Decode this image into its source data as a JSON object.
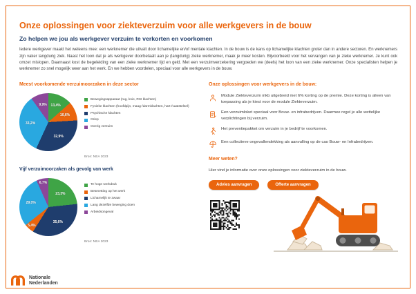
{
  "colors": {
    "accent_orange": "#EA650D",
    "dark_navy": "#24406B",
    "body_text": "#414141",
    "green": "#3FA446",
    "light_blue": "#29A8E0",
    "purple": "#8C4799"
  },
  "page": {
    "title": "Onze oplossingen voor ziekteverzuim voor alle werkgevers in de bouw",
    "subtitle": "Zo helpen we jou als werkgever verzuim te verkorten en voorkomen",
    "intro": "Iedere werkgever maakt het weleens mee: een werknemer die uitvalt door lichamelijke en/of mentale klachten. In de bouw is de kans op lichamelijke klachten groter dan in andere sectoren. En werknemers zijn vaker langdurig ziek. Naast het loon dat je als werkgever doorbetaalt aan je (langdurig) zieke werknemer, maak je meer kosten. Bijvoorbeeld voor het vervangen van je zieke werknemer. Je kunt ook omzet mislopen. Daarnaast kost de begeleiding van een zieke werknemer tijd en geld. Met een verzuimverzekering vergoeden we (deels) het loon van een zieke werknemer. Onze specialisten helpen je werknemer zo snel mogelijk weer aan het werk. En we hebben voordelen, speciaal voor alle werkgevers in de bouw."
  },
  "chart_data": [
    {
      "type": "pie",
      "title": "Meest voorkomende verzuimoorzaken in deze sector",
      "source": "Bron: NEA 2023",
      "legend_position": "right",
      "slices": [
        {
          "label": "Bewegingsapparaat (rug, knie, RSI klachten)",
          "value": 13.4,
          "color": "#3FA446"
        },
        {
          "label": "Fysieke klachten (hoofdpijn, maag-/darmklachten, hart-/vaatstelsel)",
          "value": 10.6,
          "color": "#EA650D"
        },
        {
          "label": "Psychische klachten",
          "value": 32.9,
          "color": "#1F3D6D"
        },
        {
          "label": "Griep",
          "value": 33.2,
          "color": "#29A8E0"
        },
        {
          "label": "Overig verzuim",
          "value": 9.9,
          "color": "#8C4799"
        }
      ],
      "draw_order": [
        0,
        1,
        2,
        3,
        4
      ]
    },
    {
      "type": "pie",
      "title": "Vijf verzuimoorzaken als gevolg van werk",
      "source": "Bron: NEA 2023",
      "legend_position": "right",
      "slices": [
        {
          "label": "Te hoge werkdruk",
          "value": 23.3,
          "color": "#3FA446"
        },
        {
          "label": "Besmetting op het werk",
          "value": 5.4,
          "color": "#EA650D"
        },
        {
          "label": "Lichamelijk te zwaar",
          "value": 35.6,
          "color": "#1F3D6D"
        },
        {
          "label": "Lang dezelfde beweging doen",
          "value": 29.0,
          "color": "#29A8E0"
        },
        {
          "label": "Arbeidsongeval",
          "value": 6.7,
          "color": "#8C4799"
        }
      ],
      "draw_order": [
        0,
        2,
        1,
        3,
        4
      ]
    }
  ],
  "solutions": {
    "heading": "Onze oplossingen voor werkgevers in de bouw:",
    "items": [
      {
        "icon": "person-icon",
        "text": "Module Ziekteverzuim mkb uitgebreid met 6% korting op de premie. Deze korting is alleen van toepassing als je kiest voor de module Ziekteverzuim."
      },
      {
        "icon": "document-pencil-icon",
        "text": "Een verzuimloket speciaal voor Bouw- en infrabedrijven. Daarmee regel je alle wettelijke verplichtingen bij verzuim."
      },
      {
        "icon": "walking-person-icon",
        "text": "Het preventiepakket om verzuim in je bedrijf te voorkomen."
      },
      {
        "icon": "umbrella-icon",
        "text": "Een collectieve ongevallendekking als aanvulling op de cao Bouw- en Infrabedrijven."
      }
    ]
  },
  "more": {
    "heading": "Meer weten?",
    "text": "Hier vind je informatie over onze oplossingen voor ziekteverzuim in de bouw.",
    "buttons": [
      {
        "label": "Advies aanvragen"
      },
      {
        "label": "Offerte aanvragen"
      }
    ]
  },
  "footer": {
    "brand_line1": "Nationale",
    "brand_line2": "Nederlanden"
  }
}
